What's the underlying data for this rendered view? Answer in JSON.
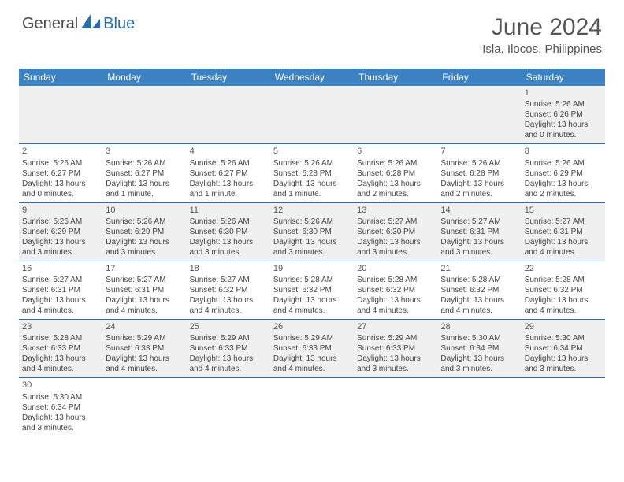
{
  "logo": {
    "text1": "General",
    "text2": "Blue"
  },
  "title": "June 2024",
  "location": "Isla, Ilocos, Philippines",
  "colors": {
    "header_bg": "#3b82c4",
    "header_text": "#ffffff",
    "row_border": "#2a6db0",
    "alt_row_bg": "#f0f0f0"
  },
  "days_of_week": [
    "Sunday",
    "Monday",
    "Tuesday",
    "Wednesday",
    "Thursday",
    "Friday",
    "Saturday"
  ],
  "weeks": [
    [
      null,
      null,
      null,
      null,
      null,
      null,
      {
        "n": "1",
        "sr": "5:26 AM",
        "ss": "6:26 PM",
        "dl": "13 hours and 0 minutes."
      }
    ],
    [
      {
        "n": "2",
        "sr": "5:26 AM",
        "ss": "6:27 PM",
        "dl": "13 hours and 0 minutes."
      },
      {
        "n": "3",
        "sr": "5:26 AM",
        "ss": "6:27 PM",
        "dl": "13 hours and 1 minute."
      },
      {
        "n": "4",
        "sr": "5:26 AM",
        "ss": "6:27 PM",
        "dl": "13 hours and 1 minute."
      },
      {
        "n": "5",
        "sr": "5:26 AM",
        "ss": "6:28 PM",
        "dl": "13 hours and 1 minute."
      },
      {
        "n": "6",
        "sr": "5:26 AM",
        "ss": "6:28 PM",
        "dl": "13 hours and 2 minutes."
      },
      {
        "n": "7",
        "sr": "5:26 AM",
        "ss": "6:28 PM",
        "dl": "13 hours and 2 minutes."
      },
      {
        "n": "8",
        "sr": "5:26 AM",
        "ss": "6:29 PM",
        "dl": "13 hours and 2 minutes."
      }
    ],
    [
      {
        "n": "9",
        "sr": "5:26 AM",
        "ss": "6:29 PM",
        "dl": "13 hours and 3 minutes."
      },
      {
        "n": "10",
        "sr": "5:26 AM",
        "ss": "6:29 PM",
        "dl": "13 hours and 3 minutes."
      },
      {
        "n": "11",
        "sr": "5:26 AM",
        "ss": "6:30 PM",
        "dl": "13 hours and 3 minutes."
      },
      {
        "n": "12",
        "sr": "5:26 AM",
        "ss": "6:30 PM",
        "dl": "13 hours and 3 minutes."
      },
      {
        "n": "13",
        "sr": "5:27 AM",
        "ss": "6:30 PM",
        "dl": "13 hours and 3 minutes."
      },
      {
        "n": "14",
        "sr": "5:27 AM",
        "ss": "6:31 PM",
        "dl": "13 hours and 3 minutes."
      },
      {
        "n": "15",
        "sr": "5:27 AM",
        "ss": "6:31 PM",
        "dl": "13 hours and 4 minutes."
      }
    ],
    [
      {
        "n": "16",
        "sr": "5:27 AM",
        "ss": "6:31 PM",
        "dl": "13 hours and 4 minutes."
      },
      {
        "n": "17",
        "sr": "5:27 AM",
        "ss": "6:31 PM",
        "dl": "13 hours and 4 minutes."
      },
      {
        "n": "18",
        "sr": "5:27 AM",
        "ss": "6:32 PM",
        "dl": "13 hours and 4 minutes."
      },
      {
        "n": "19",
        "sr": "5:28 AM",
        "ss": "6:32 PM",
        "dl": "13 hours and 4 minutes."
      },
      {
        "n": "20",
        "sr": "5:28 AM",
        "ss": "6:32 PM",
        "dl": "13 hours and 4 minutes."
      },
      {
        "n": "21",
        "sr": "5:28 AM",
        "ss": "6:32 PM",
        "dl": "13 hours and 4 minutes."
      },
      {
        "n": "22",
        "sr": "5:28 AM",
        "ss": "6:32 PM",
        "dl": "13 hours and 4 minutes."
      }
    ],
    [
      {
        "n": "23",
        "sr": "5:28 AM",
        "ss": "6:33 PM",
        "dl": "13 hours and 4 minutes."
      },
      {
        "n": "24",
        "sr": "5:29 AM",
        "ss": "6:33 PM",
        "dl": "13 hours and 4 minutes."
      },
      {
        "n": "25",
        "sr": "5:29 AM",
        "ss": "6:33 PM",
        "dl": "13 hours and 4 minutes."
      },
      {
        "n": "26",
        "sr": "5:29 AM",
        "ss": "6:33 PM",
        "dl": "13 hours and 4 minutes."
      },
      {
        "n": "27",
        "sr": "5:29 AM",
        "ss": "6:33 PM",
        "dl": "13 hours and 3 minutes."
      },
      {
        "n": "28",
        "sr": "5:30 AM",
        "ss": "6:34 PM",
        "dl": "13 hours and 3 minutes."
      },
      {
        "n": "29",
        "sr": "5:30 AM",
        "ss": "6:34 PM",
        "dl": "13 hours and 3 minutes."
      }
    ],
    [
      {
        "n": "30",
        "sr": "5:30 AM",
        "ss": "6:34 PM",
        "dl": "13 hours and 3 minutes."
      },
      null,
      null,
      null,
      null,
      null,
      null
    ]
  ],
  "labels": {
    "sunrise": "Sunrise:",
    "sunset": "Sunset:",
    "daylight": "Daylight:"
  }
}
